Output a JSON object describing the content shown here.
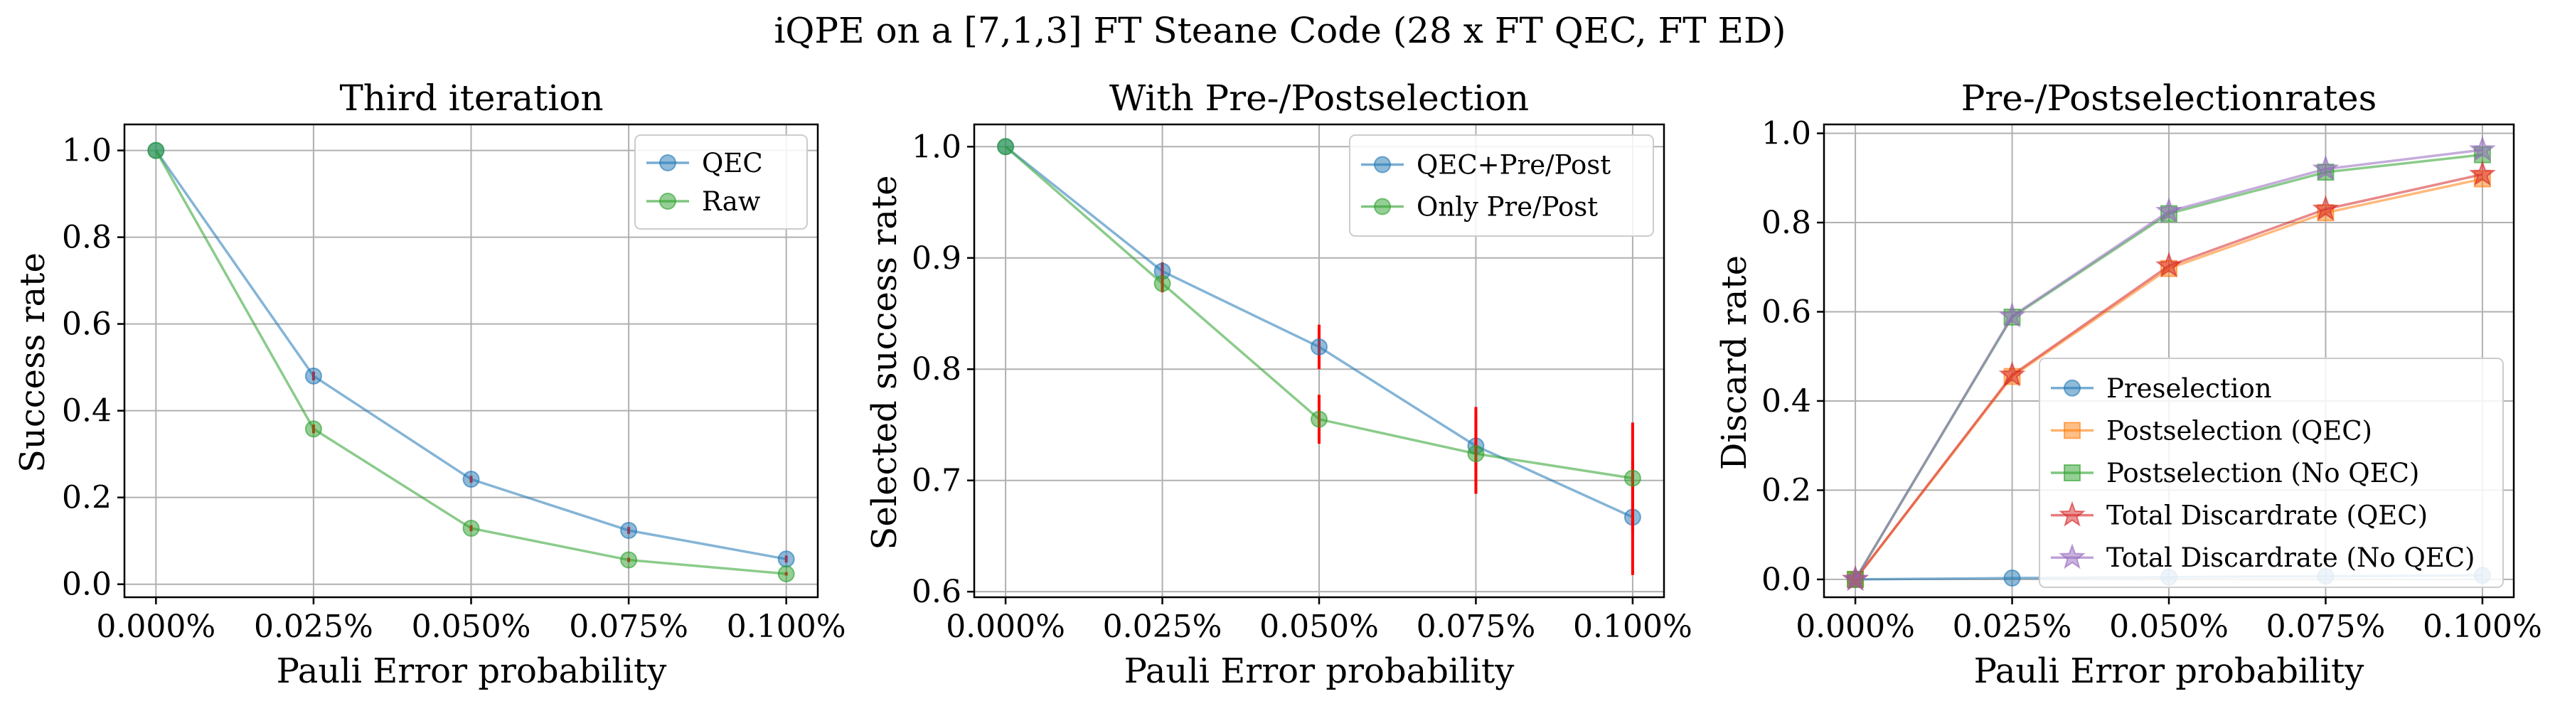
{
  "suptitle": "iQPE on a [7,1,3] FT Steane Code (28 x FT QEC, FT ED)",
  "colors": {
    "blue": "#1f77b4",
    "orange": "#ff7f0e",
    "green": "#2ca02c",
    "red": "#d62728",
    "purple": "#9467bd",
    "errorbar": "#ff0000"
  },
  "chart_data": [
    {
      "type": "line",
      "title": "Third iteration",
      "xlabel": "Pauli Error probability",
      "ylabel": "Success rate",
      "x": [
        0.0,
        0.025,
        0.05,
        0.075,
        0.1
      ],
      "xtick_labels": [
        "0.000%",
        "0.025%",
        "0.050%",
        "0.075%",
        "0.100%"
      ],
      "xlim": [
        -0.005,
        0.105
      ],
      "ylim": [
        -0.03,
        1.06
      ],
      "yticks": [
        0.0,
        0.2,
        0.4,
        0.6,
        0.8,
        1.0
      ],
      "ytick_labels": [
        "0.0",
        "0.2",
        "0.4",
        "0.6",
        "0.8",
        "1.0"
      ],
      "grid": true,
      "legend_position": "top-right",
      "series": [
        {
          "name": "QEC",
          "color": "blue",
          "marker": "circle",
          "values": [
            1.0,
            0.48,
            0.242,
            0.124,
            0.058
          ],
          "errors": [
            0,
            0.01,
            0.008,
            0.008,
            0.008
          ]
        },
        {
          "name": "Raw",
          "color": "green",
          "marker": "circle",
          "values": [
            1.0,
            0.358,
            0.129,
            0.056,
            0.024
          ],
          "errors": [
            0,
            0.01,
            0.007,
            0.005,
            0.004
          ]
        }
      ]
    },
    {
      "type": "line",
      "title": "With Pre-/Postselection",
      "xlabel": "Pauli Error probability",
      "ylabel": "Selected success rate",
      "x": [
        0.0,
        0.025,
        0.05,
        0.075,
        0.1
      ],
      "xtick_labels": [
        "0.000%",
        "0.025%",
        "0.050%",
        "0.075%",
        "0.100%"
      ],
      "xlim": [
        -0.005,
        0.105
      ],
      "ylim": [
        0.595,
        1.02
      ],
      "yticks": [
        0.6,
        0.7,
        0.8,
        0.9,
        1.0
      ],
      "ytick_labels": [
        "0.6",
        "0.7",
        "0.8",
        "0.9",
        "1.0"
      ],
      "grid": true,
      "legend_position": "top-right",
      "series": [
        {
          "name": "QEC+Pre/Post",
          "color": "blue",
          "marker": "circle",
          "values": [
            1.0,
            0.888,
            0.82,
            0.731,
            0.667
          ],
          "errors": [
            0,
            0.008,
            0.02,
            0.035,
            0.052
          ]
        },
        {
          "name": "Only Pre/Post",
          "color": "green",
          "marker": "circle",
          "values": [
            1.0,
            0.877,
            0.755,
            0.724,
            0.702
          ],
          "errors": [
            0,
            0.008,
            0.022,
            0.036,
            0.05
          ]
        }
      ]
    },
    {
      "type": "line",
      "title": "Pre-/Postselectionrates",
      "xlabel": "Pauli Error probability",
      "ylabel": "Discard rate",
      "x": [
        0.0,
        0.025,
        0.05,
        0.075,
        0.1
      ],
      "xtick_labels": [
        "0.000%",
        "0.025%",
        "0.050%",
        "0.075%",
        "0.100%"
      ],
      "xlim": [
        -0.005,
        0.105
      ],
      "ylim": [
        -0.04,
        1.02
      ],
      "yticks": [
        0.0,
        0.2,
        0.4,
        0.6,
        0.8,
        1.0
      ],
      "ytick_labels": [
        "0.0",
        "0.2",
        "0.4",
        "0.6",
        "0.8",
        "1.0"
      ],
      "grid": true,
      "legend_position": "lower-right",
      "series": [
        {
          "name": "Preselection",
          "color": "blue",
          "marker": "circle",
          "values": [
            0.0,
            0.003,
            0.005,
            0.007,
            0.009
          ]
        },
        {
          "name": "Postselection (QEC)",
          "color": "orange",
          "marker": "square",
          "values": [
            0.0,
            0.455,
            0.697,
            0.822,
            0.898
          ]
        },
        {
          "name": "Postselection (No QEC)",
          "color": "green",
          "marker": "square",
          "values": [
            0.0,
            0.588,
            0.82,
            0.913,
            0.952
          ]
        },
        {
          "name": "Total Discardrate (QEC)",
          "color": "red",
          "marker": "star",
          "values": [
            0.0,
            0.458,
            0.703,
            0.83,
            0.908
          ]
        },
        {
          "name": "Total Discardrate (No QEC)",
          "color": "purple",
          "marker": "star",
          "values": [
            0.0,
            0.59,
            0.825,
            0.92,
            0.963
          ]
        }
      ]
    }
  ]
}
